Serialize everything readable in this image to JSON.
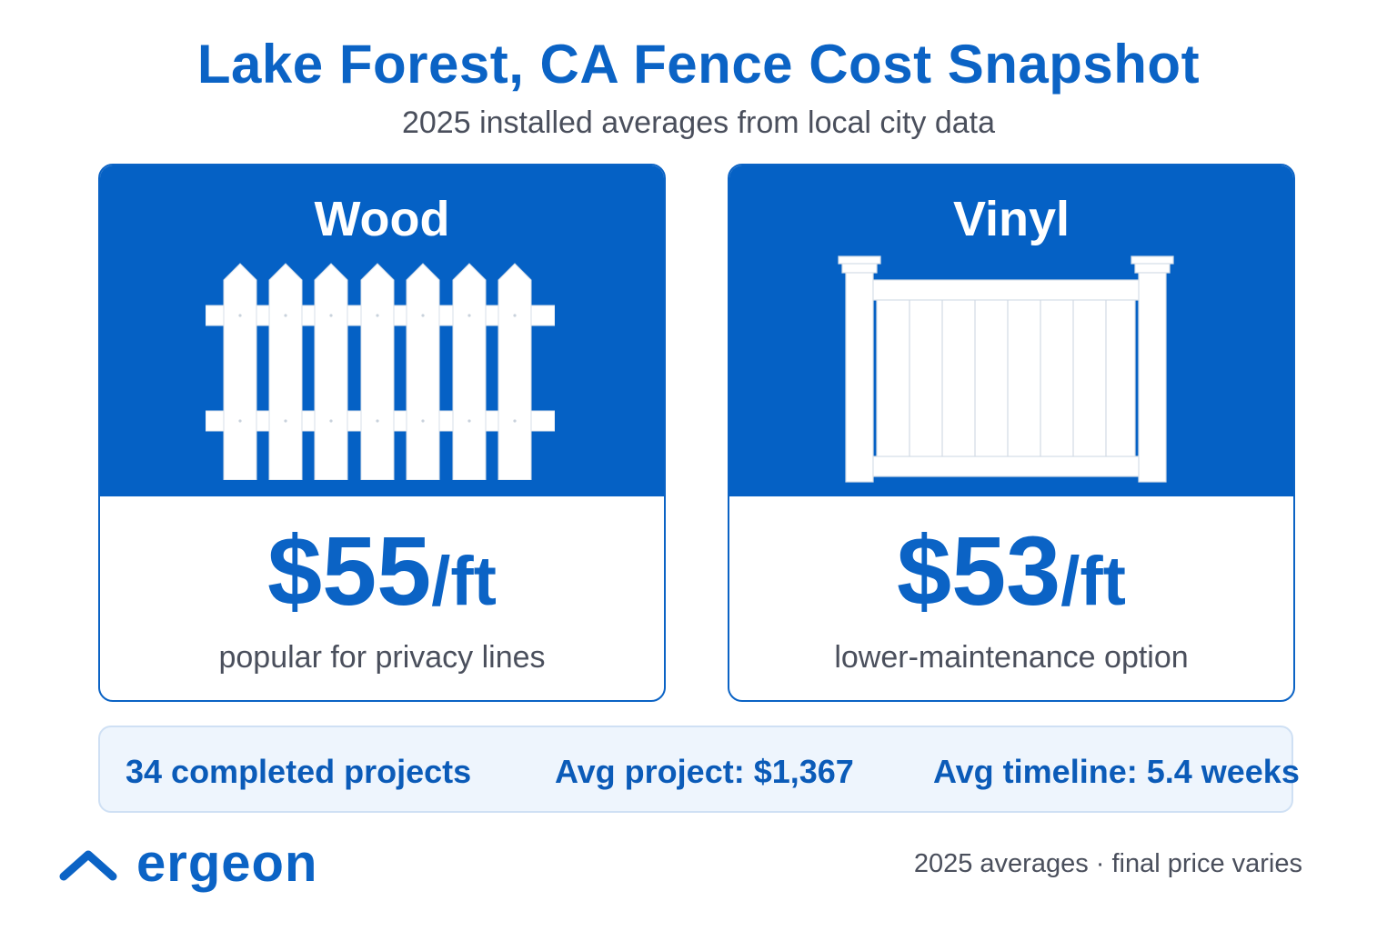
{
  "header": {
    "title": "Lake Forest, CA Fence Cost Snapshot",
    "subtitle": "2025 installed averages from local city data"
  },
  "cards": [
    {
      "name": "Wood",
      "price": "$55",
      "unit": "/ft",
      "caption": "popular for privacy lines",
      "icon": "picket-fence-icon"
    },
    {
      "name": "Vinyl",
      "price": "$53",
      "unit": "/ft",
      "caption": "lower-maintenance option",
      "icon": "vinyl-fence-panel-icon"
    }
  ],
  "stats": {
    "projects": "34 completed projects",
    "avg_project": "Avg project: $1,367",
    "avg_timeline": "Avg timeline: 5.4 weeks"
  },
  "brand": {
    "name": "ergeon",
    "icon": "chevron-roof-icon"
  },
  "footnote": "2025 averages · final price varies",
  "colors": {
    "brand_blue": "#0b63c5",
    "card_top": "#0561c5",
    "stats_bg": "#eef5fd",
    "muted_text": "#4a4f5c"
  }
}
